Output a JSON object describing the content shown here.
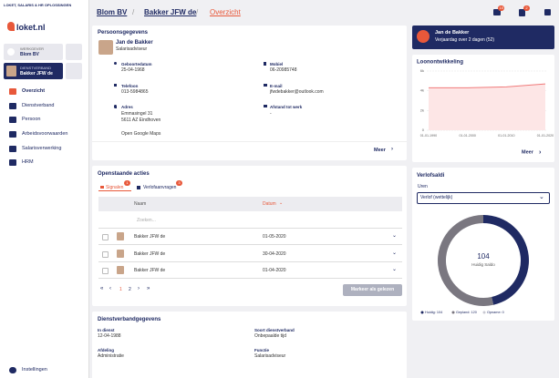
{
  "header": {
    "tagline": "LOKET, SALARIS & HR OPLOSSINGEN",
    "logo": "loket.nl",
    "badges": [
      10,
      2
    ]
  },
  "sidebar": {
    "employer_label": "WERKGEVER",
    "employer": "Blom BV",
    "employment_label": "DIENSTVERBAND",
    "employment": "Bakker JFW de",
    "nav": [
      "Overzicht",
      "Dienstverband",
      "Persoon",
      "Arbeidsvoorwaarden",
      "Salarisverwerking",
      "HRM"
    ],
    "settings": "Instellingen"
  },
  "breadcrumb": [
    "Blom BV",
    "Bakker JFW de",
    "Overzicht"
  ],
  "personal": {
    "title": "Persoonsgegevens",
    "name": "Jan de Bakker",
    "role": "Salarisadviseur",
    "fields": [
      {
        "label": "Geboortedatum",
        "value": "25-04-1968"
      },
      {
        "label": "Mobiel",
        "value": "06-20985748"
      },
      {
        "label": "Telefoon",
        "value": "013-5984865"
      },
      {
        "label": "E-mail",
        "value": "jfwdebakker@outlook.com"
      },
      {
        "label": "Adres",
        "value": "Emmasingel 31"
      },
      {
        "label": "Afstand tot werk",
        "value": "-"
      }
    ],
    "address_line2": "5611 AZ Eindhoven",
    "maps": "Open Google Maps",
    "more": "Meer"
  },
  "actions": {
    "title": "Openstaande acties",
    "tabs": [
      {
        "label": "Signalen",
        "badge": 1
      },
      {
        "label": "Verlofaanvragen",
        "badge": 3
      }
    ],
    "columns": [
      "Naam",
      "Datum"
    ],
    "search": "Zoeken...",
    "rows": [
      [
        "Bakker JFW de",
        "01-05-2020"
      ],
      [
        "Bakker JFW de",
        "30-04-2020"
      ],
      [
        "Bakker JFW de",
        "01-04-2020"
      ]
    ],
    "pages": [
      "1",
      "2"
    ],
    "button": "Markeer als gelezen"
  },
  "employment": {
    "title": "Dienstverbandgegevens",
    "fields": [
      {
        "label": "In dienst",
        "value": "12-04-1988"
      },
      {
        "label": "Soort dienstverband",
        "value": "Onbepaalde tijd"
      },
      {
        "label": "Afdeling",
        "value": "Administratie"
      },
      {
        "label": "Functie",
        "value": "Salarisadviseur"
      }
    ]
  },
  "birthday": {
    "name": "Jan de Bakker",
    "text": "Verjaardag over 2 dagen (52)"
  },
  "leave": {
    "title": "Verlofsaldi",
    "unit": "Uren",
    "select": "Verlof (wettelijk)"
  },
  "chart_data": [
    {
      "type": "line",
      "title": "Loonontwikkeling",
      "categories": [
        "01-01-1990",
        "01-01-2000",
        "01-01-2010",
        "01-01-2020"
      ],
      "values": [
        4300,
        4300,
        4400,
        4700
      ],
      "color": "#f07a7a",
      "fill": "#fde6e6",
      "ylim": [
        0,
        6000
      ],
      "yticks": [
        0,
        {
          "value": 2000,
          "label": "2k"
        },
        {
          "value": 4000,
          "label": "4k"
        },
        {
          "value": 6000,
          "label": "6k"
        }
      ],
      "grid": true,
      "more": "Meer"
    },
    {
      "type": "pie",
      "categories": [
        "Huidig",
        "Gepland",
        "Opname"
      ],
      "values": [
        104,
        120,
        0
      ],
      "value_labels": [
        "Huidig: 104",
        "Gepland: 120",
        "Opname: 0"
      ],
      "colors": [
        "#1f2a63",
        "#7a7780",
        "#c9c9d2"
      ],
      "center_label": "Huidig Saldo"
    }
  ]
}
